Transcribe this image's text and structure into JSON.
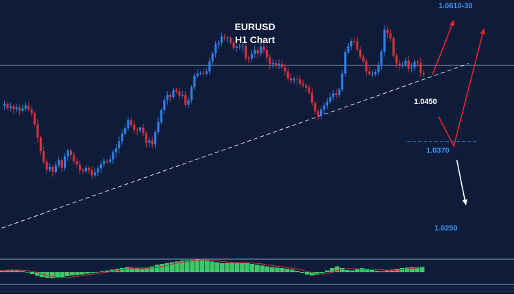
{
  "chart_data": {
    "type": "candlestick",
    "title": "EURUSD",
    "subtitle": "H1 Chart",
    "background": "#0e1c3a",
    "colors": {
      "bull": "#2f7fe8",
      "bear": "#d8313a",
      "label_blue": "#3a9bff",
      "label_white": "#ffffff",
      "scenario_up": "#e8262e",
      "scenario_down": "#ffffff",
      "histogram": "#3fc76a",
      "signal": "#c0303a"
    },
    "y_range": [
      1.018,
      1.064
    ],
    "close_series": [
      1.0452,
      1.0455,
      1.0448,
      1.0451,
      1.0446,
      1.0449,
      1.0443,
      1.0447,
      1.0452,
      1.0445,
      1.0438,
      1.0419,
      1.0395,
      1.0371,
      1.0352,
      1.0338,
      1.0343,
      1.0334,
      1.0346,
      1.0355,
      1.0341,
      1.0362,
      1.0372,
      1.0364,
      1.0353,
      1.0347,
      1.0337,
      1.0335,
      1.0341,
      1.0337,
      1.0328,
      1.0333,
      1.034,
      1.0348,
      1.0353,
      1.0352,
      1.0356,
      1.0369,
      1.0376,
      1.0389,
      1.0402,
      1.0412,
      1.0426,
      1.0418,
      1.0409,
      1.0408,
      1.0413,
      1.0403,
      1.0386,
      1.039,
      1.0383,
      1.0405,
      1.0423,
      1.0444,
      1.0462,
      1.0471,
      1.0467,
      1.048,
      1.0477,
      1.047,
      1.0471,
      1.0454,
      1.0462,
      1.0485,
      1.0505,
      1.0509,
      1.051,
      1.0509,
      1.0513,
      1.0531,
      1.0545,
      1.0561,
      1.0564,
      1.0575,
      1.0573,
      1.0573,
      1.0564,
      1.0555,
      1.0557,
      1.0557,
      1.0558,
      1.0537,
      1.0536,
      1.0544,
      1.0551,
      1.0545,
      1.0557,
      1.0551,
      1.0538,
      1.0526,
      1.0528,
      1.0523,
      1.0526,
      1.052,
      1.0513,
      1.0501,
      1.0497,
      1.05,
      1.0499,
      1.0491,
      1.0488,
      1.0484,
      1.0475,
      1.0457,
      1.0442,
      1.0434,
      1.0445,
      1.0452,
      1.0459,
      1.0467,
      1.0474,
      1.0471,
      1.0481,
      1.0509,
      1.0547,
      1.0558,
      1.0567,
      1.0566,
      1.0552,
      1.0539,
      1.0531,
      1.0513,
      1.0508,
      1.0508,
      1.0512,
      1.0523,
      1.0548,
      1.0587,
      1.0581,
      1.0572,
      1.0541,
      1.0527,
      1.0524,
      1.0525,
      1.0532,
      1.0518,
      1.052,
      1.053,
      1.0528,
      1.051,
      1.0508
    ],
    "horizontal_line": 1.0524,
    "trendline": {
      "from": [
        0,
        1.0234
      ],
      "to": [
        155,
        1.0527
      ]
    },
    "levels": [
      {
        "label": "1.0610-30",
        "price": 1.063,
        "color": "label_blue"
      },
      {
        "label": "1.0450",
        "price": 1.046,
        "color": "label_white"
      },
      {
        "label": "1.0370",
        "price": 1.0373,
        "color": "label_blue",
        "dashed_line": true
      },
      {
        "label": "1.0250",
        "price": 1.0235,
        "color": "label_blue"
      }
    ],
    "scenario_arrows": [
      {
        "color": "scenario_up",
        "points": [
          [
            143,
            1.0508
          ],
          [
            150,
            1.0604
          ]
        ]
      },
      {
        "color": "scenario_up",
        "points": [
          [
            145,
            1.0432
          ],
          [
            150,
            1.038
          ],
          [
            160,
            1.0589
          ]
        ]
      },
      {
        "color": "scenario_down",
        "points": [
          [
            151,
            1.0355
          ],
          [
            154,
            1.0275
          ]
        ]
      }
    ],
    "indicator": {
      "type": "histogram",
      "values": [
        0.04,
        0.05,
        0.06,
        0.05,
        0.03,
        -0.01,
        -0.05,
        -0.09,
        -0.12,
        -0.14,
        -0.15,
        -0.14,
        -0.12,
        -0.1,
        -0.08,
        -0.07,
        -0.06,
        -0.04,
        -0.02,
        0.0,
        0.02,
        0.04,
        0.06,
        0.08,
        0.1,
        0.12,
        0.11,
        0.09,
        0.08,
        0.1,
        0.14,
        0.18,
        0.2,
        0.22,
        0.24,
        0.26,
        0.28,
        0.29,
        0.3,
        0.31,
        0.3,
        0.28,
        0.26,
        0.24,
        0.22,
        0.22,
        0.23,
        0.24,
        0.23,
        0.22,
        0.2,
        0.18,
        0.16,
        0.14,
        0.12,
        0.11,
        0.1,
        0.08,
        0.06,
        0.03,
        -0.02,
        -0.06,
        -0.08,
        -0.06,
        -0.02,
        0.04,
        0.1,
        0.14,
        0.1,
        0.05,
        0.04,
        0.07,
        0.1,
        0.08,
        0.05,
        0.03,
        0.02,
        0.04,
        0.06,
        0.08,
        0.1,
        0.11,
        0.12,
        0.12,
        0.13
      ]
    }
  }
}
